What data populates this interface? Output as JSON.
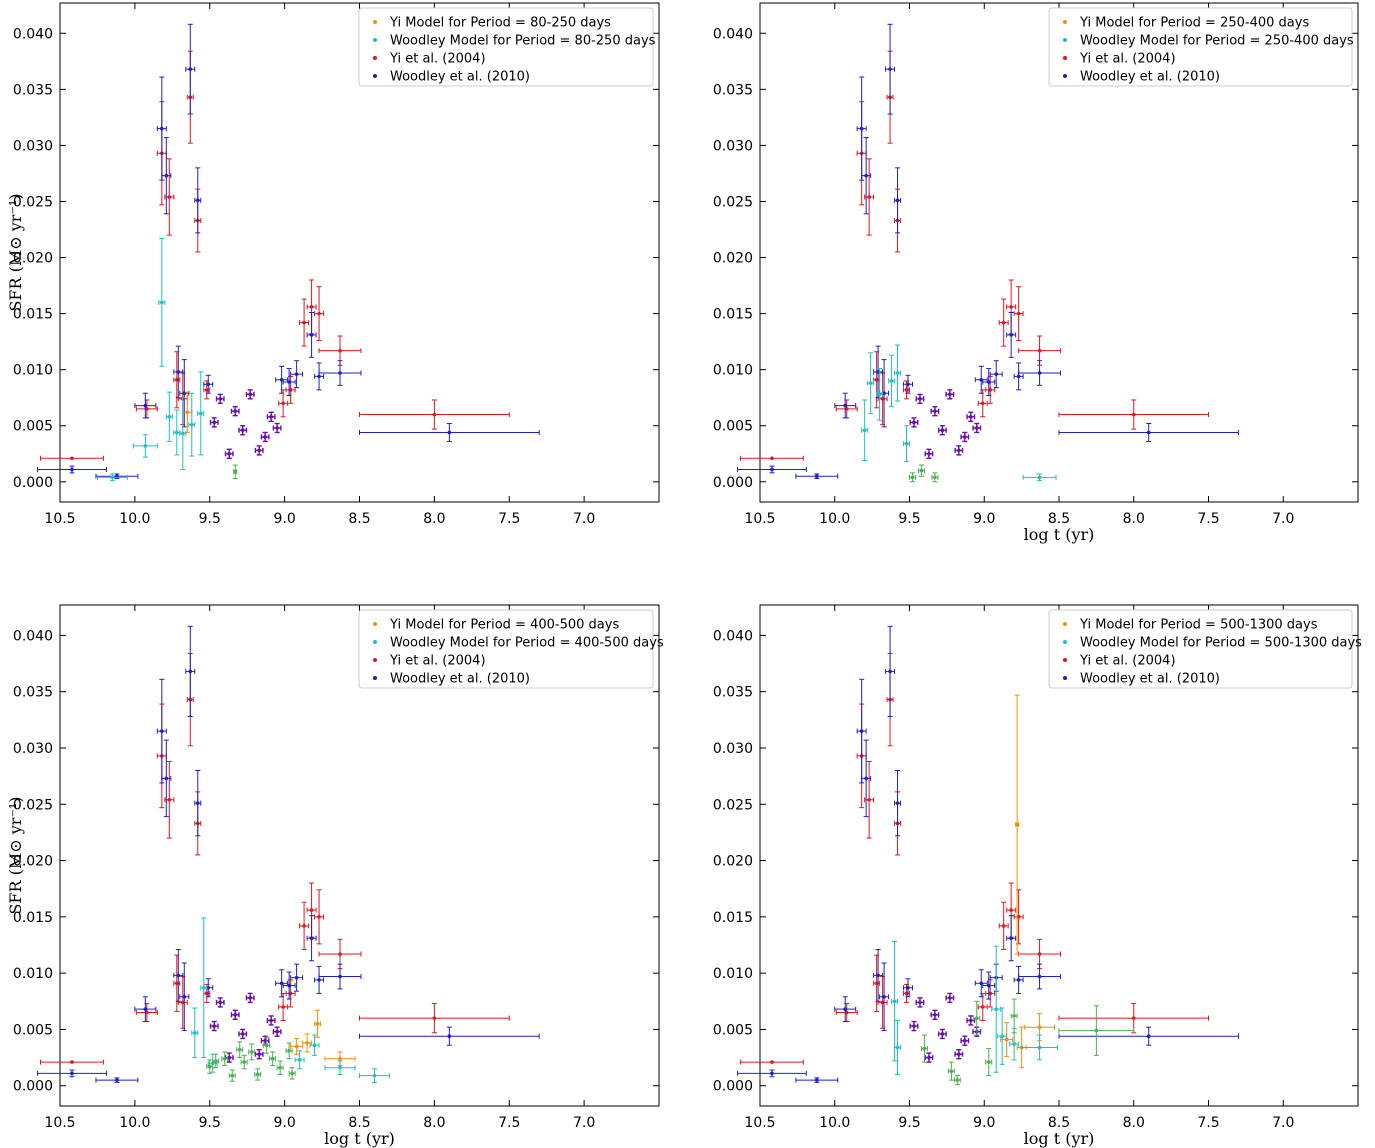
{
  "chart_data": [
    {
      "type": "scatter",
      "ylabel": "SFR (M⊙ yr⁻¹)",
      "xlabel": "",
      "xlim": [
        10.5,
        6.5
      ],
      "ylim": [
        -0.0018,
        0.0427
      ],
      "x_ticks": [
        10.5,
        10.0,
        9.5,
        9.0,
        8.5,
        8.0,
        7.5,
        7.0
      ],
      "x_tick_labels": [
        "10.5",
        "10.0",
        "9.5",
        "9.0",
        "8.5",
        "8.0",
        "7.5",
        "7.0"
      ],
      "y_ticks": [
        0.0,
        0.005,
        0.01,
        0.015,
        0.02,
        0.025,
        0.03,
        0.035,
        0.04
      ],
      "y_tick_labels": [
        "0.000",
        "0.005",
        "0.010",
        "0.015",
        "0.020",
        "0.025",
        "0.030",
        "0.035",
        "0.040"
      ],
      "legend_position": "top-right",
      "legend": [
        "Yi Model for Period = 80-250 days",
        "Woodley Model for Period = 80-250 days",
        "Yi et al. (2004)",
        "Woodley et al. (2010)"
      ],
      "model_points": [
        {
          "x": 9.65,
          "y": 0.0062,
          "xerr": 0.03,
          "yerr": 0.0018,
          "color": "#ff8c00"
        },
        {
          "x": 9.82,
          "y": 0.016,
          "xerr": 0.02,
          "yerr": 0.0057,
          "color": "#20c0c0"
        },
        {
          "x": 9.93,
          "y": 0.0032,
          "xerr": 0.08,
          "yerr": 0.001,
          "color": "#20c0c0"
        },
        {
          "x": 9.77,
          "y": 0.0058,
          "xerr": 0.02,
          "yerr": 0.0022,
          "color": "#20c0c0"
        },
        {
          "x": 9.72,
          "y": 0.0044,
          "xerr": 0.02,
          "yerr": 0.002,
          "color": "#20c0c0"
        },
        {
          "x": 9.68,
          "y": 0.0043,
          "xerr": 0.02,
          "yerr": 0.0032,
          "color": "#20c0c0"
        },
        {
          "x": 9.62,
          "y": 0.0051,
          "xerr": 0.02,
          "yerr": 0.0028,
          "color": "#20c0c0"
        },
        {
          "x": 9.56,
          "y": 0.0061,
          "xerr": 0.02,
          "yerr": 0.0037,
          "color": "#20c0c0"
        },
        {
          "x": 10.15,
          "y": 0.0004,
          "xerr": 0.1,
          "yerr": 0.0003,
          "color": "#20c0c0"
        },
        {
          "x": 9.33,
          "y": 0.0009,
          "xerr": 0.01,
          "yerr": 0.0006,
          "color": "#4caf50"
        }
      ]
    },
    {
      "type": "scatter",
      "ylabel": "",
      "xlabel": "log t (yr)",
      "xlim": [
        10.5,
        6.5
      ],
      "ylim": [
        -0.0018,
        0.0427
      ],
      "x_ticks": [
        10.5,
        10.0,
        9.5,
        9.0,
        8.5,
        8.0,
        7.5,
        7.0
      ],
      "x_tick_labels": [
        "10.5",
        "10.0",
        "9.5",
        "9.0",
        "8.5",
        "8.0",
        "7.5",
        "7.0"
      ],
      "y_ticks": [
        0.0,
        0.005,
        0.01,
        0.015,
        0.02,
        0.025,
        0.03,
        0.035,
        0.04
      ],
      "y_tick_labels": [
        "0.000",
        "0.005",
        "0.010",
        "0.015",
        "0.020",
        "0.025",
        "0.030",
        "0.035",
        "0.040"
      ],
      "legend_position": "top-right",
      "legend": [
        "Yi Model for Period = 250-400 days",
        "Woodley Model for Period = 250-400 days",
        "Yi et al. (2004)",
        "Woodley et al. (2010)"
      ],
      "model_points": [
        {
          "x": 9.8,
          "y": 0.0046,
          "xerr": 0.02,
          "yerr": 0.0027,
          "color": "#20c0c0"
        },
        {
          "x": 9.76,
          "y": 0.0088,
          "xerr": 0.02,
          "yerr": 0.0027,
          "color": "#20c0c0"
        },
        {
          "x": 9.7,
          "y": 0.0078,
          "xerr": 0.02,
          "yerr": 0.0023,
          "color": "#20c0c0"
        },
        {
          "x": 9.62,
          "y": 0.009,
          "xerr": 0.02,
          "yerr": 0.0023,
          "color": "#20c0c0"
        },
        {
          "x": 9.58,
          "y": 0.0097,
          "xerr": 0.02,
          "yerr": 0.0025,
          "color": "#20c0c0"
        },
        {
          "x": 9.52,
          "y": 0.0034,
          "xerr": 0.02,
          "yerr": 0.0016,
          "color": "#20c0c0"
        },
        {
          "x": 8.63,
          "y": 0.0004,
          "xerr": 0.11,
          "yerr": 0.0003,
          "color": "#20c0c0"
        },
        {
          "x": 9.48,
          "y": 0.0004,
          "xerr": 0.02,
          "yerr": 0.0004,
          "color": "#4caf50"
        },
        {
          "x": 9.42,
          "y": 0.001,
          "xerr": 0.02,
          "yerr": 0.0005,
          "color": "#4caf50"
        },
        {
          "x": 9.33,
          "y": 0.0004,
          "xerr": 0.02,
          "yerr": 0.0004,
          "color": "#4caf50"
        }
      ]
    },
    {
      "type": "scatter",
      "ylabel": "SFR (M⊙ yr⁻¹)",
      "xlabel": "log t (yr)",
      "xlim": [
        10.5,
        6.5
      ],
      "ylim": [
        -0.0018,
        0.0427
      ],
      "x_ticks": [
        10.5,
        10.0,
        9.5,
        9.0,
        8.5,
        8.0,
        7.5,
        7.0
      ],
      "x_tick_labels": [
        "10.5",
        "10.0",
        "9.5",
        "9.0",
        "8.5",
        "8.0",
        "7.5",
        "7.0"
      ],
      "y_ticks": [
        0.0,
        0.005,
        0.01,
        0.015,
        0.02,
        0.025,
        0.03,
        0.035,
        0.04
      ],
      "y_tick_labels": [
        "0.000",
        "0.005",
        "0.010",
        "0.015",
        "0.020",
        "0.025",
        "0.030",
        "0.035",
        "0.040"
      ],
      "legend_position": "top-right",
      "legend": [
        "Yi Model for Period = 400-500 days",
        "Woodley Model for Period = 400-500 days",
        "Yi et al. (2004)",
        "Woodley et al. (2010)"
      ],
      "model_points": [
        {
          "x": 8.78,
          "y": 0.0055,
          "xerr": 0.02,
          "yerr": 0.0012,
          "color": "#ff8c00"
        },
        {
          "x": 8.85,
          "y": 0.0038,
          "xerr": 0.03,
          "yerr": 0.0008,
          "color": "#ff8c00"
        },
        {
          "x": 8.92,
          "y": 0.0035,
          "xerr": 0.04,
          "yerr": 0.0007,
          "color": "#ff8c00"
        },
        {
          "x": 8.63,
          "y": 0.0024,
          "xerr": 0.1,
          "yerr": 0.0006,
          "color": "#ff8c00"
        },
        {
          "x": 9.54,
          "y": 0.0087,
          "xerr": 0.02,
          "yerr": 0.0062,
          "color": "#20c0c0"
        },
        {
          "x": 9.6,
          "y": 0.0047,
          "xerr": 0.02,
          "yerr": 0.0022,
          "color": "#20c0c0"
        },
        {
          "x": 9.48,
          "y": 0.002,
          "xerr": 0.03,
          "yerr": 0.0008,
          "color": "#20c0c0"
        },
        {
          "x": 8.9,
          "y": 0.0023,
          "xerr": 0.03,
          "yerr": 0.0008,
          "color": "#20c0c0"
        },
        {
          "x": 8.8,
          "y": 0.0036,
          "xerr": 0.03,
          "yerr": 0.0009,
          "color": "#20c0c0"
        },
        {
          "x": 8.63,
          "y": 0.0016,
          "xerr": 0.1,
          "yerr": 0.0006,
          "color": "#20c0c0"
        },
        {
          "x": 8.4,
          "y": 0.0009,
          "xerr": 0.1,
          "yerr": 0.0006,
          "color": "#20c0c0"
        },
        {
          "x": 9.5,
          "y": 0.0017,
          "xerr": 0.02,
          "yerr": 0.0006,
          "color": "#4caf50"
        },
        {
          "x": 9.46,
          "y": 0.0022,
          "xerr": 0.02,
          "yerr": 0.0006,
          "color": "#4caf50"
        },
        {
          "x": 9.4,
          "y": 0.0024,
          "xerr": 0.02,
          "yerr": 0.0006,
          "color": "#4caf50"
        },
        {
          "x": 9.35,
          "y": 0.0009,
          "xerr": 0.02,
          "yerr": 0.0005,
          "color": "#4caf50"
        },
        {
          "x": 9.3,
          "y": 0.0032,
          "xerr": 0.02,
          "yerr": 0.0007,
          "color": "#4caf50"
        },
        {
          "x": 9.27,
          "y": 0.0021,
          "xerr": 0.02,
          "yerr": 0.0006,
          "color": "#4caf50"
        },
        {
          "x": 9.22,
          "y": 0.003,
          "xerr": 0.02,
          "yerr": 0.0007,
          "color": "#4caf50"
        },
        {
          "x": 9.18,
          "y": 0.001,
          "xerr": 0.02,
          "yerr": 0.0005,
          "color": "#4caf50"
        },
        {
          "x": 9.12,
          "y": 0.0036,
          "xerr": 0.02,
          "yerr": 0.0007,
          "color": "#4caf50"
        },
        {
          "x": 9.08,
          "y": 0.0024,
          "xerr": 0.02,
          "yerr": 0.0006,
          "color": "#4caf50"
        },
        {
          "x": 9.03,
          "y": 0.0016,
          "xerr": 0.02,
          "yerr": 0.0006,
          "color": "#4caf50"
        },
        {
          "x": 8.97,
          "y": 0.0031,
          "xerr": 0.02,
          "yerr": 0.0007,
          "color": "#4caf50"
        },
        {
          "x": 8.95,
          "y": 0.0011,
          "xerr": 0.02,
          "yerr": 0.0005,
          "color": "#4caf50"
        }
      ]
    },
    {
      "type": "scatter",
      "ylabel": "",
      "xlabel": "log t (yr)",
      "xlim": [
        10.5,
        6.5
      ],
      "ylim": [
        -0.0018,
        0.0427
      ],
      "x_ticks": [
        10.5,
        10.0,
        9.5,
        9.0,
        8.5,
        8.0,
        7.5,
        7.0
      ],
      "x_tick_labels": [
        "10.5",
        "10.0",
        "9.5",
        "9.0",
        "8.5",
        "8.0",
        "7.5",
        "7.0"
      ],
      "y_ticks": [
        0.0,
        0.005,
        0.01,
        0.015,
        0.02,
        0.025,
        0.03,
        0.035,
        0.04
      ],
      "y_tick_labels": [
        "0.000",
        "0.005",
        "0.010",
        "0.015",
        "0.020",
        "0.025",
        "0.030",
        "0.035",
        "0.040"
      ],
      "legend_position": "top-right",
      "legend": [
        "Yi Model for Period = 500-1300 days",
        "Woodley Model for Period = 500-1300 days",
        "Yi et al. (2004)",
        "Woodley et al. (2010)"
      ],
      "model_points": [
        {
          "x": 8.78,
          "y": 0.0232,
          "xerr": 0.01,
          "yerr": 0.0115,
          "color": "#ff8c00"
        },
        {
          "x": 8.75,
          "y": 0.0034,
          "xerr": 0.03,
          "yerr": 0.0018,
          "color": "#ff8c00"
        },
        {
          "x": 8.85,
          "y": 0.0041,
          "xerr": 0.04,
          "yerr": 0.0015,
          "color": "#ff8c00"
        },
        {
          "x": 8.63,
          "y": 0.0052,
          "xerr": 0.1,
          "yerr": 0.0012,
          "color": "#ff8c00"
        },
        {
          "x": 9.6,
          "y": 0.0075,
          "xerr": 0.02,
          "yerr": 0.0053,
          "color": "#20c0c0"
        },
        {
          "x": 9.58,
          "y": 0.0034,
          "xerr": 0.02,
          "yerr": 0.0024,
          "color": "#20c0c0"
        },
        {
          "x": 8.92,
          "y": 0.0068,
          "xerr": 0.03,
          "yerr": 0.0056,
          "color": "#20c0c0"
        },
        {
          "x": 8.88,
          "y": 0.0044,
          "xerr": 0.03,
          "yerr": 0.0025,
          "color": "#20c0c0"
        },
        {
          "x": 8.8,
          "y": 0.0037,
          "xerr": 0.03,
          "yerr": 0.0014,
          "color": "#20c0c0"
        },
        {
          "x": 8.63,
          "y": 0.0034,
          "xerr": 0.12,
          "yerr": 0.0011,
          "color": "#20c0c0"
        },
        {
          "x": 9.4,
          "y": 0.0033,
          "xerr": 0.02,
          "yerr": 0.0012,
          "color": "#4caf50"
        },
        {
          "x": 9.22,
          "y": 0.0013,
          "xerr": 0.02,
          "yerr": 0.0008,
          "color": "#4caf50"
        },
        {
          "x": 9.18,
          "y": 0.0005,
          "xerr": 0.02,
          "yerr": 0.0004,
          "color": "#4caf50"
        },
        {
          "x": 9.05,
          "y": 0.006,
          "xerr": 0.02,
          "yerr": 0.0015,
          "color": "#4caf50"
        },
        {
          "x": 8.97,
          "y": 0.0021,
          "xerr": 0.02,
          "yerr": 0.0012,
          "color": "#4caf50"
        },
        {
          "x": 8.8,
          "y": 0.0062,
          "xerr": 0.02,
          "yerr": 0.0015,
          "color": "#4caf50"
        },
        {
          "x": 8.25,
          "y": 0.0049,
          "xerr": 0.25,
          "yerr": 0.0022,
          "color": "#4caf50"
        }
      ]
    }
  ],
  "shared_observations": {
    "yi_2004": [
      {
        "x": 10.42,
        "y": 0.0021,
        "xerr": 0.21,
        "yerr": 0.0
      },
      {
        "x": 9.92,
        "y": 0.0065,
        "xerr": 0.07,
        "yerr": 0.0008
      },
      {
        "x": 9.82,
        "y": 0.0293,
        "xerr": 0.03,
        "yerr": 0.0046
      },
      {
        "x": 9.77,
        "y": 0.0254,
        "xerr": 0.03,
        "yerr": 0.0034
      },
      {
        "x": 9.72,
        "y": 0.0091,
        "xerr": 0.02,
        "yerr": 0.0025
      },
      {
        "x": 9.68,
        "y": 0.0074,
        "xerr": 0.03,
        "yerr": 0.0023
      },
      {
        "x": 9.63,
        "y": 0.0343,
        "xerr": 0.02,
        "yerr": 0.0041
      },
      {
        "x": 9.58,
        "y": 0.0233,
        "xerr": 0.02,
        "yerr": 0.0028
      },
      {
        "x": 9.52,
        "y": 0.0082,
        "xerr": 0.02,
        "yerr": 0.0008
      },
      {
        "x": 9.01,
        "y": 0.007,
        "xerr": 0.03,
        "yerr": 0.0012
      },
      {
        "x": 8.96,
        "y": 0.0082,
        "xerr": 0.03,
        "yerr": 0.0012
      },
      {
        "x": 8.87,
        "y": 0.0142,
        "xerr": 0.03,
        "yerr": 0.0021
      },
      {
        "x": 8.82,
        "y": 0.0156,
        "xerr": 0.03,
        "yerr": 0.0024
      },
      {
        "x": 8.77,
        "y": 0.015,
        "xerr": 0.03,
        "yerr": 0.0024
      },
      {
        "x": 8.63,
        "y": 0.0117,
        "xerr": 0.14,
        "yerr": 0.0013
      },
      {
        "x": 8.0,
        "y": 0.006,
        "xerr": 0.5,
        "yerr": 0.0013
      }
    ],
    "woodley_2010": [
      {
        "x": 10.42,
        "y": 0.0011,
        "xerr": 0.23,
        "yerr": 0.0003
      },
      {
        "x": 10.12,
        "y": 0.0005,
        "xerr": 0.14,
        "yerr": 0.0002
      },
      {
        "x": 9.93,
        "y": 0.0068,
        "xerr": 0.07,
        "yerr": 0.0011
      },
      {
        "x": 9.82,
        "y": 0.0315,
        "xerr": 0.03,
        "yerr": 0.0046
      },
      {
        "x": 9.79,
        "y": 0.0273,
        "xerr": 0.03,
        "yerr": 0.0034
      },
      {
        "x": 9.71,
        "y": 0.0098,
        "xerr": 0.03,
        "yerr": 0.0023
      },
      {
        "x": 9.67,
        "y": 0.0079,
        "xerr": 0.03,
        "yerr": 0.003
      },
      {
        "x": 9.63,
        "y": 0.0368,
        "xerr": 0.03,
        "yerr": 0.004
      },
      {
        "x": 9.58,
        "y": 0.0251,
        "xerr": 0.02,
        "yerr": 0.0029
      },
      {
        "x": 9.51,
        "y": 0.0087,
        "xerr": 0.03,
        "yerr": 0.0008
      },
      {
        "x": 9.02,
        "y": 0.0091,
        "xerr": 0.04,
        "yerr": 0.0012
      },
      {
        "x": 8.97,
        "y": 0.0089,
        "xerr": 0.04,
        "yerr": 0.0012
      },
      {
        "x": 8.92,
        "y": 0.0096,
        "xerr": 0.04,
        "yerr": 0.0012
      },
      {
        "x": 8.82,
        "y": 0.0131,
        "xerr": 0.03,
        "yerr": 0.002
      },
      {
        "x": 8.77,
        "y": 0.0094,
        "xerr": 0.03,
        "yerr": 0.0012
      },
      {
        "x": 8.63,
        "y": 0.0097,
        "xerr": 0.14,
        "yerr": 0.0011
      },
      {
        "x": 7.9,
        "y": 0.0044,
        "xerr": 0.6,
        "yerr": 0.0008
      }
    ],
    "overlap_points": [
      {
        "x": 9.47,
        "y": 0.0053
      },
      {
        "x": 9.43,
        "y": 0.0074
      },
      {
        "x": 9.37,
        "y": 0.0025
      },
      {
        "x": 9.33,
        "y": 0.0063
      },
      {
        "x": 9.28,
        "y": 0.0046
      },
      {
        "x": 9.23,
        "y": 0.0078
      },
      {
        "x": 9.17,
        "y": 0.0028
      },
      {
        "x": 9.13,
        "y": 0.004
      },
      {
        "x": 9.09,
        "y": 0.0058
      },
      {
        "x": 9.05,
        "y": 0.0048
      }
    ]
  },
  "colors": {
    "yi_model": "#ff8c00",
    "woodley_model": "#20c0c0",
    "yi_obs": "#e8141b",
    "woodley_obs": "#1f1fc8",
    "overlap": "#6a0dad",
    "combined_model": "#4caf50"
  }
}
